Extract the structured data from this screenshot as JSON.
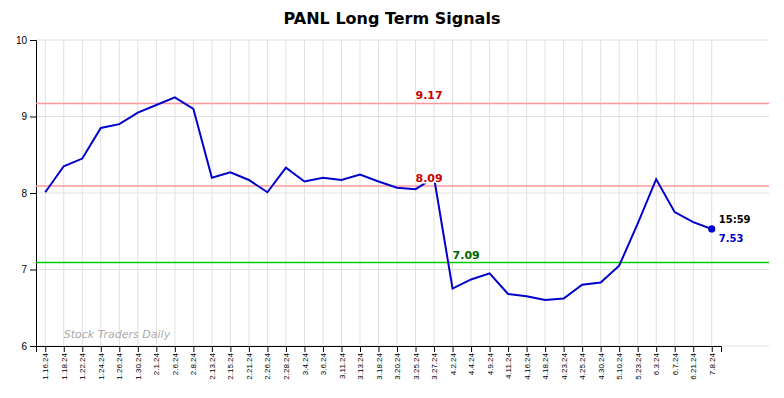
{
  "chart_data": {
    "type": "line",
    "title": "PANL Long Term Signals",
    "categories": [
      "1.16.24",
      "1.18.24",
      "1.22.24",
      "1.24.24",
      "1.26.24",
      "1.30.24",
      "2.1.24",
      "2.6.24",
      "2.8.24",
      "2.13.24",
      "2.15.24",
      "2.21.24",
      "2.26.24",
      "2.28.24",
      "3.4.24",
      "3.6.24",
      "3.11.24",
      "3.13.24",
      "3.18.24",
      "3.20.24",
      "3.25.24",
      "3.27.24",
      "4.2.24",
      "4.4.24",
      "4.9.24",
      "4.11.24",
      "4.16.24",
      "4.18.24",
      "4.23.24",
      "4.25.24",
      "4.30.24",
      "5.10.24",
      "5.23.24",
      "6.3.24",
      "6.7.24",
      "6.21.24",
      "7.8.24"
    ],
    "values": [
      8.01,
      8.35,
      8.45,
      8.85,
      8.9,
      9.05,
      9.15,
      9.25,
      9.1,
      8.2,
      8.27,
      8.17,
      8.01,
      8.33,
      8.15,
      8.2,
      8.17,
      8.24,
      8.15,
      8.07,
      8.05,
      8.2,
      6.75,
      6.87,
      6.95,
      6.68,
      6.65,
      6.6,
      6.62,
      6.8,
      6.83,
      7.05,
      7.6,
      8.18,
      7.75,
      7.62,
      7.53
    ],
    "color": "#0000cc",
    "ylim": [
      6,
      10
    ],
    "yticks": [
      6,
      7,
      8,
      9,
      10
    ],
    "grid": true,
    "hlines": [
      {
        "value": 9.17,
        "color": "#ff9999",
        "label_color": "#cc0000"
      },
      {
        "value": 8.09,
        "color": "#ff9999",
        "label_color": "#cc0000"
      },
      {
        "value": 7.09,
        "color": "#00cc00",
        "label_color": "#006600"
      }
    ],
    "annotations": [
      "15:59",
      "Stock Traders Daily"
    ]
  }
}
